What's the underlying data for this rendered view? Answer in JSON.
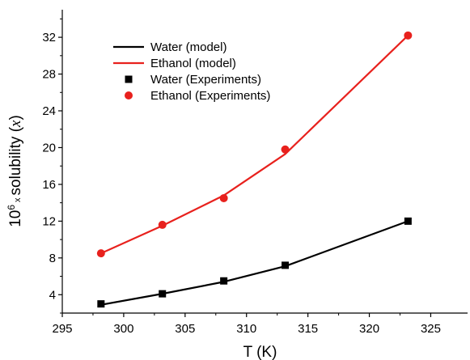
{
  "chart_data": {
    "type": "line",
    "title": "",
    "xlabel": "T (K)",
    "ylabel": {
      "prefix": "10",
      "exponent": "6",
      "times": "x",
      "main": "solubility (",
      "symbol": "x",
      "suffix": ")"
    },
    "xlim": [
      295,
      328
    ],
    "ylim": [
      2,
      35
    ],
    "xticks": [
      295,
      300,
      305,
      310,
      315,
      320,
      325
    ],
    "yticks": [
      4,
      8,
      12,
      16,
      20,
      24,
      28,
      32
    ],
    "grid": false,
    "legend_position": "top-left",
    "series": [
      {
        "name": "Water (model)",
        "kind": "line",
        "color": "#000000",
        "x": [
          298.15,
          303.15,
          308.15,
          313.15,
          323.15
        ],
        "y": [
          2.9,
          4.1,
          5.4,
          7.1,
          12.0
        ]
      },
      {
        "name": "Ethanol (model)",
        "kind": "line",
        "color": "#e8211d",
        "x": [
          298.15,
          303.15,
          308.15,
          313.15,
          323.15
        ],
        "y": [
          8.5,
          11.5,
          14.8,
          19.3,
          32.2
        ]
      },
      {
        "name": "Water (Experiments)",
        "kind": "scatter",
        "marker": "square",
        "color": "#000000",
        "x": [
          298.15,
          303.15,
          308.15,
          313.15,
          323.15
        ],
        "y": [
          3.0,
          4.1,
          5.5,
          7.2,
          12.0
        ]
      },
      {
        "name": "Ethanol (Experiments)",
        "kind": "scatter",
        "marker": "circle",
        "color": "#e8211d",
        "x": [
          298.15,
          303.15,
          308.15,
          313.15,
          323.15
        ],
        "y": [
          8.5,
          11.6,
          14.5,
          19.8,
          32.2
        ]
      }
    ]
  }
}
